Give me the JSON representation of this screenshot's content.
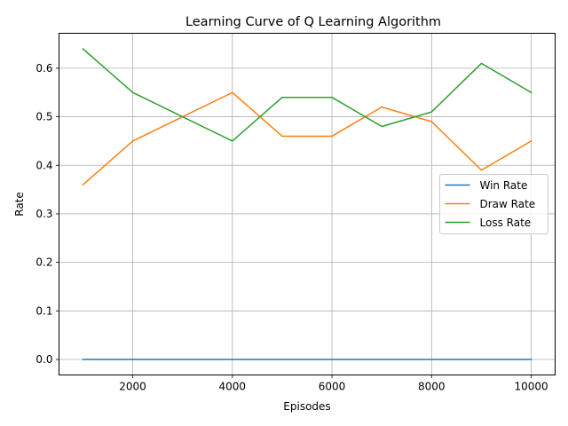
{
  "chart_data": {
    "type": "line",
    "title": "Learning Curve of Q Learning Algorithm",
    "xlabel": "Episodes",
    "ylabel": "Rate",
    "x": [
      1000,
      2000,
      3000,
      4000,
      5000,
      6000,
      7000,
      8000,
      9000,
      10000
    ],
    "x_ticks": [
      2000,
      4000,
      6000,
      8000,
      10000
    ],
    "y_ticks": [
      0.0,
      0.1,
      0.2,
      0.3,
      0.4,
      0.5,
      0.6
    ],
    "xlim": [
      520,
      10480
    ],
    "ylim": [
      -0.032,
      0.672
    ],
    "grid": true,
    "legend_position": "center-right",
    "series": [
      {
        "name": "Win Rate",
        "color": "#1f77b4",
        "values": [
          0,
          0,
          0,
          0,
          0,
          0,
          0,
          0,
          0,
          0
        ]
      },
      {
        "name": "Draw Rate",
        "color": "#ff7f0e",
        "values": [
          0.36,
          0.45,
          0.5,
          0.55,
          0.46,
          0.46,
          0.52,
          0.49,
          0.39,
          0.45
        ]
      },
      {
        "name": "Loss Rate",
        "color": "#2ca02c",
        "values": [
          0.64,
          0.55,
          0.5,
          0.45,
          0.54,
          0.54,
          0.48,
          0.51,
          0.61,
          0.55
        ]
      }
    ]
  }
}
